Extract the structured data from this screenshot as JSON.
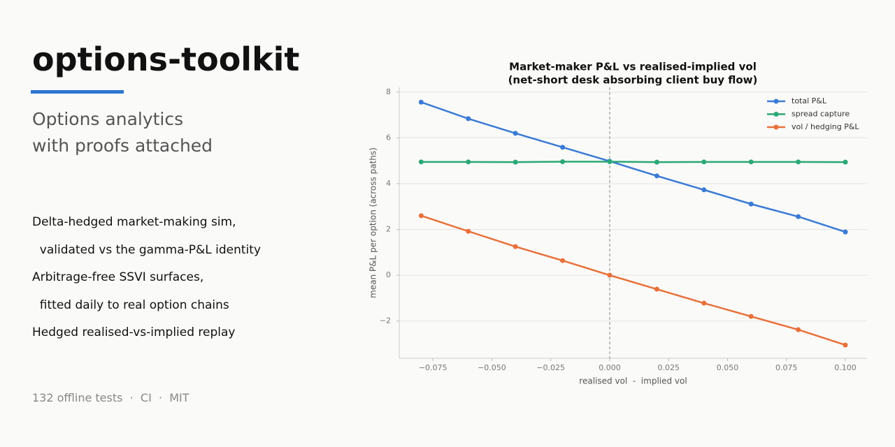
{
  "slide": {
    "title": "options-toolkit",
    "subtitle": [
      "Options analytics",
      "with proofs attached"
    ],
    "bullets": [
      "Delta-hedged market-making sim,",
      "  validated vs the gamma-P&L identity",
      "Arbitrage-free SSVI surfaces,",
      "  fitted daily to real option chains",
      "Hedged realised-vs-implied replay"
    ],
    "footer": "132 offline tests  ·  CI  ·  MIT"
  },
  "chart_data": {
    "type": "line",
    "title": [
      "Market-maker P&L vs realised-implied vol",
      "(net-short desk absorbing client buy flow)"
    ],
    "x_label": "realised vol  -  implied vol",
    "y_label": "mean P&L per option (across paths)",
    "x": [
      -0.08,
      -0.06,
      -0.04,
      -0.02,
      0,
      0.02,
      0.04,
      0.06,
      0.08,
      0.1
    ],
    "series": [
      {
        "name": "total P&L",
        "color": "#3a7bd5",
        "values": [
          7.56,
          6.84,
          6.2,
          5.59,
          4.98,
          4.34,
          3.73,
          3.11,
          2.56,
          1.89
        ]
      },
      {
        "name": "spread capture",
        "color": "#2aa876",
        "values": [
          4.95,
          4.95,
          4.94,
          4.96,
          4.96,
          4.94,
          4.95,
          4.95,
          4.95,
          4.94
        ]
      },
      {
        "name": "vol / hedging P&L",
        "color": "#e8703a",
        "values": [
          2.6,
          1.92,
          1.25,
          0.64,
          0.0,
          -0.61,
          -1.22,
          -1.8,
          -2.38,
          -3.05
        ]
      }
    ],
    "xlim": [
      -0.0893,
      0.1092
    ],
    "ylim": [
      -3.63,
      8.21
    ],
    "xticks": [
      {
        "value": -0.075,
        "label": "−0.075"
      },
      {
        "value": -0.05,
        "label": "−0.050"
      },
      {
        "value": -0.025,
        "label": "−0.025"
      },
      {
        "value": 0,
        "label": "0.000"
      },
      {
        "value": 0.025,
        "label": "0.025"
      },
      {
        "value": 0.05,
        "label": "0.050"
      },
      {
        "value": 0.075,
        "label": "0.075"
      },
      {
        "value": 0.1,
        "label": "0.100"
      }
    ],
    "yticks": [
      {
        "value": -2,
        "label": "−2"
      },
      0,
      2,
      4,
      6,
      8
    ],
    "grid": "y",
    "vline": 0,
    "legend": "upper right"
  }
}
